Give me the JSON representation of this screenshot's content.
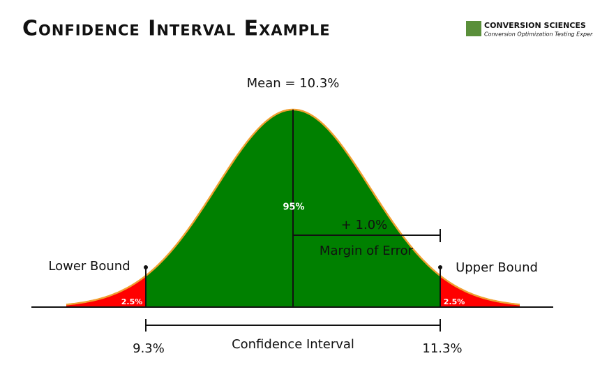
{
  "header": {
    "title": "Confidence Interval Example"
  },
  "logo": {
    "name": "Conversion Sciences",
    "tagline": "Conversion Optimization Testing Experts"
  },
  "labels": {
    "mean": "Mean = 10.3%",
    "center_area": "95%",
    "margin_value": "+ 1.0%",
    "margin_label": "Margin of Error",
    "lower_bound": "Lower Bound",
    "upper_bound": "Upper Bound",
    "left_tail": "2.5%",
    "right_tail": "2.5%",
    "lower_value": "9.3%",
    "upper_value": "11.3%",
    "interval_label": "Confidence Interval"
  }
}
